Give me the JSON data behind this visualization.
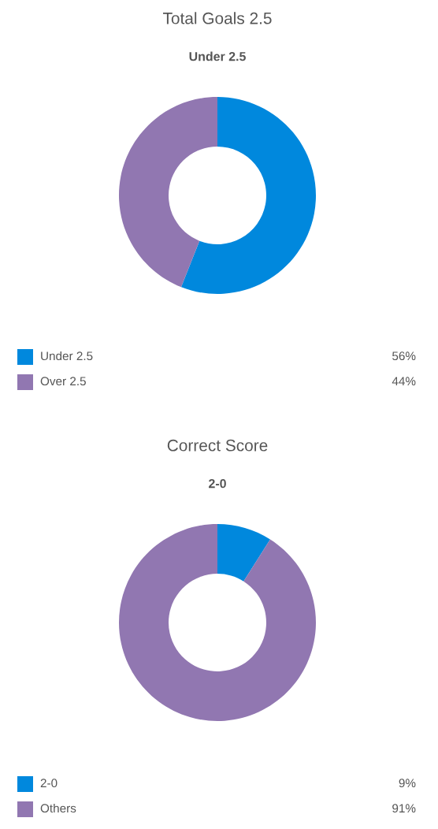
{
  "chart_data": [
    {
      "type": "donut",
      "title": "Total Goals 2.5",
      "subtitle": "Under 2.5",
      "categories": [
        "Under 2.5",
        "Over 2.5"
      ],
      "values": [
        56,
        44
      ],
      "colors": [
        "#0088dd",
        "#9177b1"
      ],
      "value_labels": [
        "56%",
        "44%"
      ],
      "legend": "bottom"
    },
    {
      "type": "donut",
      "title": "Correct Score",
      "subtitle": "2-0",
      "categories": [
        "2-0",
        "Others"
      ],
      "values": [
        9,
        91
      ],
      "colors": [
        "#0088dd",
        "#9177b1"
      ],
      "value_labels": [
        "9%",
        "91%"
      ],
      "legend": "bottom"
    }
  ]
}
